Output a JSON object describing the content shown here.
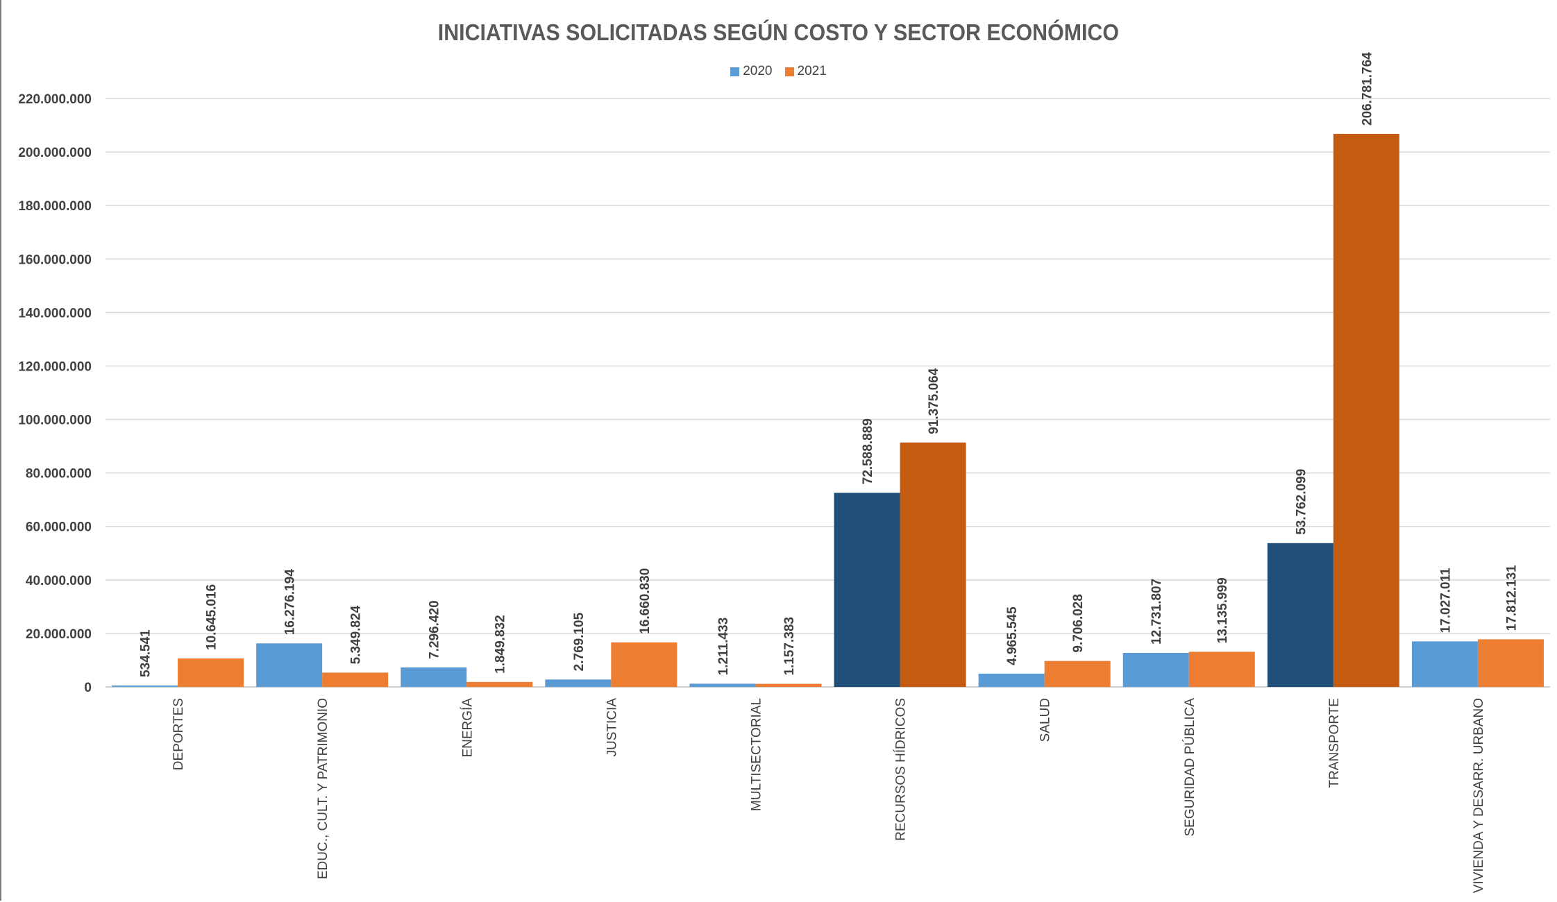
{
  "chart_data": {
    "type": "bar",
    "title": "INICIATIVAS SOLICITADAS SEGÚN COSTO Y SECTOR ECONÓMICO",
    "xlabel": "",
    "ylabel": "",
    "ylim": [
      0,
      220000000
    ],
    "yticks": [
      "0",
      "20.000.000",
      "40.000.000",
      "60.000.000",
      "80.000.000",
      "100.000.000",
      "120.000.000",
      "140.000.000",
      "160.000.000",
      "180.000.000",
      "200.000.000",
      "220.000.000"
    ],
    "grid": true,
    "legend_position": "top-center",
    "categories": [
      "DEPORTES",
      "EDUC., CULT. Y PATRIMONIO",
      "ENERGÍA",
      "JUSTICIA",
      "MULTISECTORIAL",
      "RECURSOS HÍDRICOS",
      "SALUD",
      "SEGURIDAD PÚBLICA",
      "TRANSPORTE",
      "VIVIENDA Y DESARR. URBANO"
    ],
    "series": [
      {
        "name": "2020",
        "color": "#5B9BD5",
        "highlight_color": "#1F4E79",
        "values": [
          534541,
          16276194,
          7296420,
          2769105,
          1211433,
          72588889,
          4965545,
          12731807,
          53762099,
          17027011
        ],
        "labels": [
          "534.541",
          "16.276.194",
          "7.296.420",
          "2.769.105",
          "1.211.433",
          "72.588.889",
          "4.965.545",
          "12.731.807",
          "53.762.099",
          "17.027.011"
        ]
      },
      {
        "name": "2021",
        "color": "#ED7D31",
        "highlight_color": "#C55A11",
        "values": [
          10645016,
          5349824,
          1849832,
          16660830,
          1157383,
          91375064,
          9706028,
          13135999,
          206781764,
          17812131
        ],
        "labels": [
          "10.645.016",
          "5.349.824",
          "1.849.832",
          "16.660.830",
          "1.157.383",
          "91.375.064",
          "9.706.028",
          "13.135.999",
          "206.781.764",
          "17.812.131"
        ]
      }
    ],
    "highlighted_categories": [
      "RECURSOS HÍDRICOS",
      "TRANSPORTE"
    ]
  }
}
